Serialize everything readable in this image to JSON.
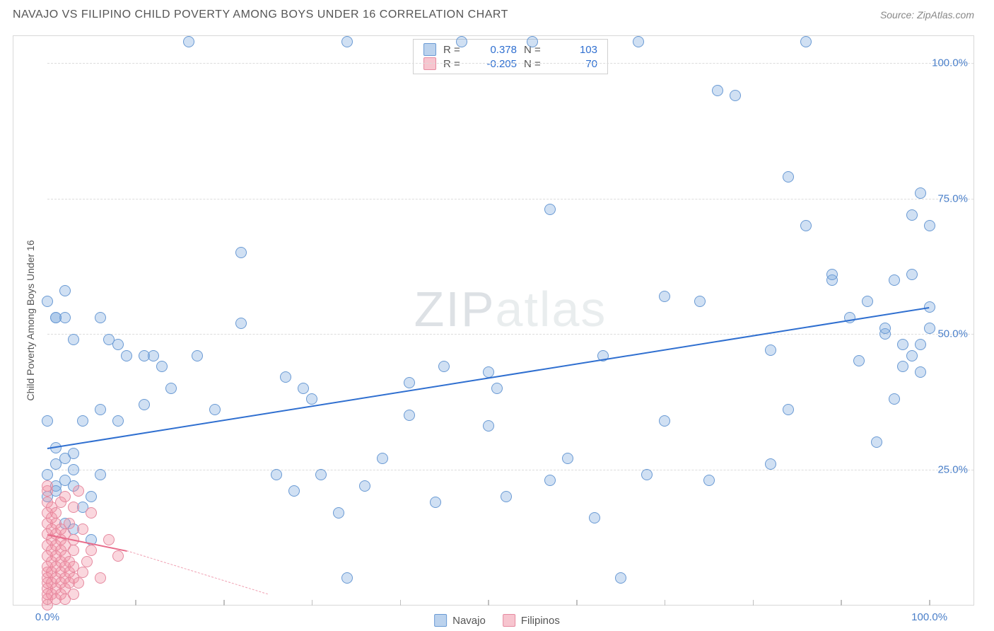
{
  "header": {
    "title": "NAVAJO VS FILIPINO CHILD POVERTY AMONG BOYS UNDER 16 CORRELATION CHART",
    "source": "Source: ZipAtlas.com"
  },
  "watermark": {
    "zip": "ZIP",
    "atlas": "atlas"
  },
  "chart": {
    "type": "scatter",
    "ylabel": "Child Poverty Among Boys Under 16",
    "xlim": [
      0,
      105
    ],
    "ylim": [
      0,
      105
    ],
    "xticks": [
      0,
      10,
      20,
      30,
      40,
      50,
      60,
      70,
      80,
      90,
      100
    ],
    "yticks_major": [
      25,
      50,
      75,
      100
    ],
    "xtick_labels": {
      "0": "0.0%",
      "100": "100.0%"
    },
    "ytick_labels": {
      "25": "25.0%",
      "50": "50.0%",
      "75": "75.0%",
      "100": "100.0%"
    },
    "grid_color": "#dcdcdc",
    "background_color": "#ffffff",
    "marker_size": 16,
    "series": [
      {
        "name": "Navajo",
        "key": "navajo",
        "color_fill": "rgba(120,165,220,0.35)",
        "color_stroke": "#6a9ad4",
        "r": 0.378,
        "n": 103,
        "regression": {
          "x1": 0,
          "y1": 29,
          "x2": 100,
          "y2": 55,
          "color": "#2f6fd0",
          "width": 2.5
        },
        "points": [
          [
            0,
            24
          ],
          [
            1,
            26
          ],
          [
            1,
            22
          ],
          [
            0,
            20
          ],
          [
            1,
            21
          ],
          [
            2,
            23
          ],
          [
            2,
            27
          ],
          [
            3,
            28
          ],
          [
            1,
            29
          ],
          [
            0,
            34
          ],
          [
            3,
            25
          ],
          [
            3,
            22
          ],
          [
            4,
            18
          ],
          [
            2,
            15
          ],
          [
            3,
            14
          ],
          [
            5,
            12
          ],
          [
            5,
            20
          ],
          [
            6,
            24
          ],
          [
            4,
            34
          ],
          [
            6,
            36
          ],
          [
            8,
            34
          ],
          [
            9,
            46
          ],
          [
            11,
            46
          ],
          [
            13,
            44
          ],
          [
            12,
            46
          ],
          [
            14,
            40
          ],
          [
            11,
            37
          ],
          [
            8,
            48
          ],
          [
            7,
            49
          ],
          [
            6,
            53
          ],
          [
            3,
            49
          ],
          [
            2,
            53
          ],
          [
            2,
            58
          ],
          [
            1,
            53
          ],
          [
            0,
            56
          ],
          [
            1,
            53
          ],
          [
            16,
            104
          ],
          [
            19,
            36
          ],
          [
            17,
            46
          ],
          [
            22,
            52
          ],
          [
            22,
            65
          ],
          [
            27,
            42
          ],
          [
            28,
            21
          ],
          [
            26,
            24
          ],
          [
            29,
            40
          ],
          [
            30,
            38
          ],
          [
            31,
            24
          ],
          [
            33,
            17
          ],
          [
            34,
            104
          ],
          [
            34,
            5
          ],
          [
            36,
            22
          ],
          [
            38,
            27
          ],
          [
            41,
            35
          ],
          [
            41,
            41
          ],
          [
            44,
            19
          ],
          [
            45,
            44
          ],
          [
            47,
            104
          ],
          [
            50,
            33
          ],
          [
            50,
            43
          ],
          [
            51,
            40
          ],
          [
            52,
            20
          ],
          [
            55,
            104
          ],
          [
            57,
            73
          ],
          [
            57,
            23
          ],
          [
            59,
            27
          ],
          [
            62,
            16
          ],
          [
            63,
            46
          ],
          [
            65,
            5
          ],
          [
            67,
            104
          ],
          [
            68,
            24
          ],
          [
            70,
            34
          ],
          [
            70,
            57
          ],
          [
            74,
            56
          ],
          [
            75,
            23
          ],
          [
            76,
            95
          ],
          [
            78,
            94
          ],
          [
            82,
            26
          ],
          [
            82,
            47
          ],
          [
            84,
            36
          ],
          [
            84,
            79
          ],
          [
            86,
            104
          ],
          [
            89,
            60
          ],
          [
            89,
            61
          ],
          [
            86,
            70
          ],
          [
            91,
            53
          ],
          [
            92,
            45
          ],
          [
            93,
            56
          ],
          [
            94,
            30
          ],
          [
            95,
            50
          ],
          [
            95,
            51
          ],
          [
            96,
            38
          ],
          [
            96,
            60
          ],
          [
            97,
            44
          ],
          [
            97,
            48
          ],
          [
            98,
            46
          ],
          [
            98,
            61
          ],
          [
            98,
            72
          ],
          [
            99,
            48
          ],
          [
            99,
            43
          ],
          [
            99,
            76
          ],
          [
            100,
            70
          ],
          [
            100,
            51
          ],
          [
            100,
            55
          ]
        ]
      },
      {
        "name": "Filipinos",
        "key": "filipinos",
        "color_fill": "rgba(240,140,160,0.35)",
        "color_stroke": "#e68aa0",
        "r": -0.205,
        "n": 70,
        "regression_solid": {
          "x1": 0,
          "y1": 13,
          "x2": 9,
          "y2": 10,
          "color": "#e86b8a",
          "width": 2
        },
        "regression_dash": {
          "x1": 9,
          "y1": 10,
          "x2": 25,
          "y2": 2,
          "color": "#f0a0b2",
          "width": 1.5
        },
        "points": [
          [
            0,
            0
          ],
          [
            0,
            1
          ],
          [
            0,
            2
          ],
          [
            0,
            3
          ],
          [
            0,
            4
          ],
          [
            0,
            5
          ],
          [
            0,
            6
          ],
          [
            0,
            7
          ],
          [
            0,
            9
          ],
          [
            0,
            11
          ],
          [
            0,
            13
          ],
          [
            0,
            15
          ],
          [
            0,
            17
          ],
          [
            0,
            19
          ],
          [
            0,
            21
          ],
          [
            0,
            22
          ],
          [
            0.5,
            2
          ],
          [
            0.5,
            4
          ],
          [
            0.5,
            6
          ],
          [
            0.5,
            8
          ],
          [
            0.5,
            10
          ],
          [
            0.5,
            12
          ],
          [
            0.5,
            14
          ],
          [
            0.5,
            16
          ],
          [
            0.5,
            18
          ],
          [
            1,
            1
          ],
          [
            1,
            3
          ],
          [
            1,
            5
          ],
          [
            1,
            7
          ],
          [
            1,
            9
          ],
          [
            1,
            11
          ],
          [
            1,
            13
          ],
          [
            1,
            15
          ],
          [
            1,
            17
          ],
          [
            1.5,
            2
          ],
          [
            1.5,
            4
          ],
          [
            1.5,
            6
          ],
          [
            1.5,
            8
          ],
          [
            1.5,
            10
          ],
          [
            1.5,
            12
          ],
          [
            1.5,
            14
          ],
          [
            1.5,
            19
          ],
          [
            2,
            1
          ],
          [
            2,
            3
          ],
          [
            2,
            5
          ],
          [
            2,
            7
          ],
          [
            2,
            9
          ],
          [
            2,
            11
          ],
          [
            2,
            13
          ],
          [
            2,
            20
          ],
          [
            2.5,
            4
          ],
          [
            2.5,
            6
          ],
          [
            2.5,
            8
          ],
          [
            2.5,
            15
          ],
          [
            3,
            2
          ],
          [
            3,
            5
          ],
          [
            3,
            7
          ],
          [
            3,
            10
          ],
          [
            3,
            12
          ],
          [
            3,
            18
          ],
          [
            3.5,
            4
          ],
          [
            3.5,
            21
          ],
          [
            4,
            6
          ],
          [
            4,
            14
          ],
          [
            4.5,
            8
          ],
          [
            5,
            10
          ],
          [
            5,
            17
          ],
          [
            6,
            5
          ],
          [
            7,
            12
          ],
          [
            8,
            9
          ]
        ]
      }
    ],
    "legend_top": {
      "rows": [
        {
          "swatch": "blue",
          "r_label": "R =",
          "r_value": "0.378",
          "n_label": "N =",
          "n_value": "103"
        },
        {
          "swatch": "pink",
          "r_label": "R =",
          "r_value": "-0.205",
          "n_label": "N =",
          "n_value": "70"
        }
      ]
    },
    "legend_bottom": {
      "items": [
        {
          "swatch": "blue",
          "label": "Navajo"
        },
        {
          "swatch": "pink",
          "label": "Filipinos"
        }
      ]
    }
  }
}
